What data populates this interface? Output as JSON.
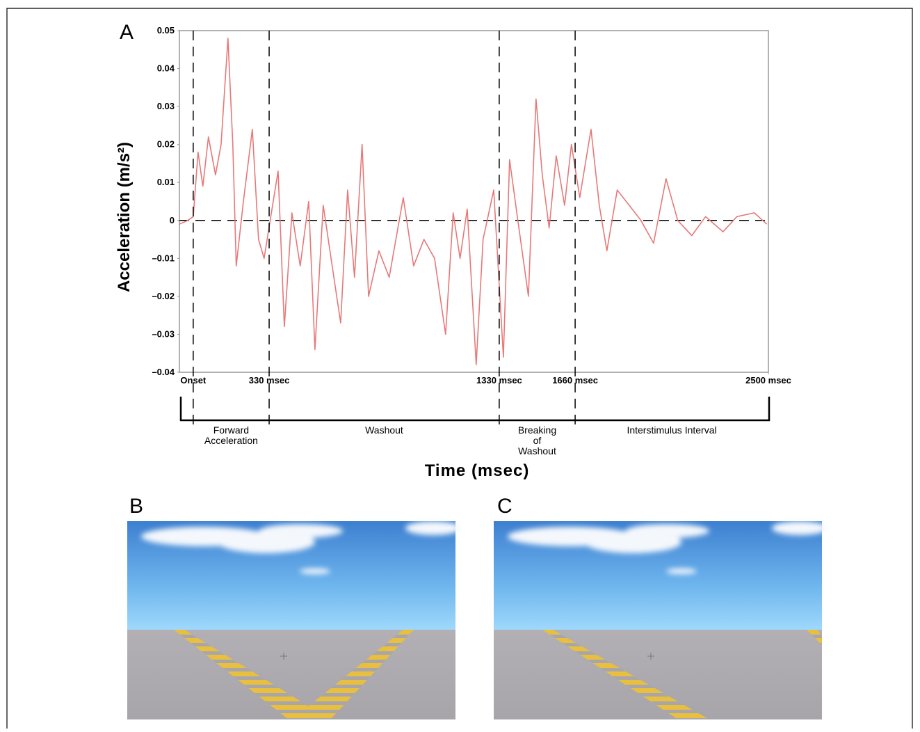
{
  "panels": [
    "A",
    "B",
    "C"
  ],
  "chart_data": {
    "type": "line",
    "x_label": "Time (msec)",
    "y_label": "Acceleration (m/s²)",
    "color": "#e87878",
    "xlim": [
      -60,
      2500
    ],
    "ylim": [
      -0.04,
      0.05
    ],
    "xticks": [
      {
        "value": 0,
        "label": "Onset"
      },
      {
        "value": 330,
        "label": "330 msec"
      },
      {
        "value": 1330,
        "label": "1330 msec"
      },
      {
        "value": 1660,
        "label": "1660 msec"
      },
      {
        "value": 2500,
        "label": "2500 msec"
      }
    ],
    "yticks": [
      {
        "value": -0.04,
        "label": "–0.04"
      },
      {
        "value": -0.03,
        "label": "–0.03"
      },
      {
        "value": -0.02,
        "label": "–0.02"
      },
      {
        "value": -0.01,
        "label": "–0.01"
      },
      0,
      0.01,
      0.02,
      0.03,
      0.04,
      0.05
    ],
    "phases": [
      [
        "Forward",
        "Acceleration"
      ],
      [
        "Washout"
      ],
      [
        "Breaking",
        "of",
        "Washout"
      ],
      [
        "Interstimulus Interval"
      ]
    ],
    "x": [
      -60,
      -24,
      0,
      21,
      42,
      66,
      97,
      121,
      151,
      172,
      187,
      218,
      257,
      284,
      308,
      345,
      369,
      396,
      429,
      465,
      502,
      529,
      565,
      604,
      641,
      671,
      701,
      734,
      762,
      807,
      852,
      913,
      958,
      1003,
      1049,
      1097,
      1130,
      1160,
      1191,
      1230,
      1260,
      1306,
      1348,
      1375,
      1411,
      1457,
      1490,
      1517,
      1547,
      1578,
      1614,
      1644,
      1680,
      1729,
      1765,
      1798,
      1843,
      1895,
      1946,
      2001,
      2055,
      2106,
      2167,
      2227,
      2303,
      2363,
      2439,
      2493
    ],
    "values": [
      -0.001,
      0,
      0.001,
      0.018,
      0.009,
      0.022,
      0.012,
      0.02,
      0.048,
      0.02,
      -0.012,
      0.005,
      0.024,
      -0.005,
      -0.01,
      0.004,
      0.013,
      -0.028,
      0.002,
      -0.012,
      0.005,
      -0.034,
      0.004,
      -0.012,
      -0.027,
      0.008,
      -0.015,
      0.02,
      -0.02,
      -0.008,
      -0.015,
      0.006,
      -0.012,
      -0.005,
      -0.01,
      -0.03,
      0.002,
      -0.01,
      0.003,
      -0.038,
      -0.005,
      0.008,
      -0.036,
      0.016,
      0,
      -0.02,
      0.032,
      0.012,
      -0.002,
      0.017,
      0.004,
      0.02,
      0.006,
      0.024,
      0.004,
      -0.008,
      0.008,
      0.004,
      0,
      -0.006,
      0.011,
      0,
      -0.004,
      0.001,
      -0.003,
      0.001,
      0.002,
      -0.001
    ]
  }
}
